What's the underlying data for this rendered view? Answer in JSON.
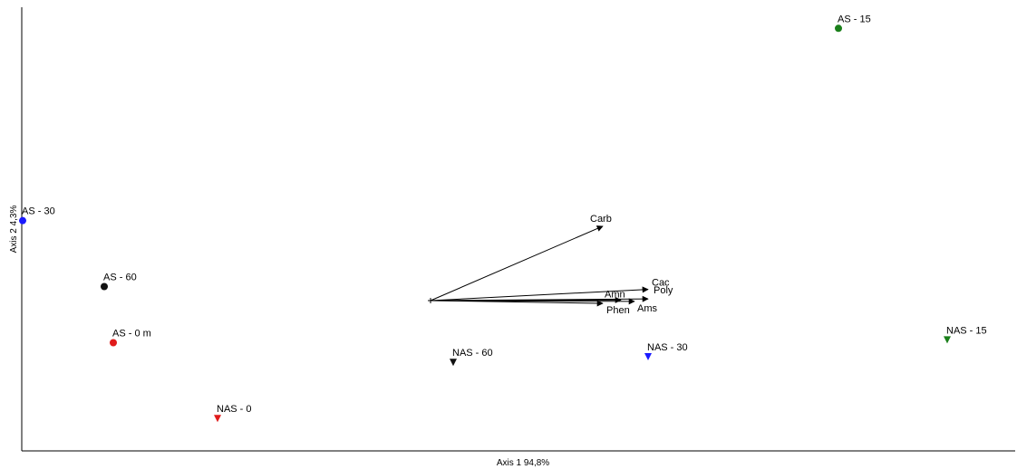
{
  "chart_data": {
    "type": "scatter",
    "xlabel": "Axis 1 94,8%",
    "ylabel": "Axis 2 4,3%",
    "grid": false,
    "points": [
      {
        "label": "AS - 15",
        "x": 0.9,
        "y": 0.97,
        "marker": "circle",
        "color": "#1a7f1a"
      },
      {
        "label": "AS - 30",
        "x": -0.9,
        "y": 0.285,
        "marker": "circle",
        "color": "#1a1aff"
      },
      {
        "label": "AS - 60",
        "x": -0.72,
        "y": 0.05,
        "marker": "circle",
        "color": "#111111"
      },
      {
        "label": "AS - 0 m",
        "x": -0.7,
        "y": -0.15,
        "marker": "circle",
        "color": "#e01b1b"
      },
      {
        "label": "NAS - 0",
        "x": -0.47,
        "y": -0.42,
        "marker": "triangle-down",
        "color": "#e01b1b"
      },
      {
        "label": "NAS - 60",
        "x": 0.05,
        "y": -0.22,
        "marker": "triangle-down",
        "color": "#111111"
      },
      {
        "label": "NAS - 30",
        "x": 0.48,
        "y": -0.2,
        "marker": "triangle-down",
        "color": "#1a1aff"
      },
      {
        "label": "NAS - 15",
        "x": 1.14,
        "y": -0.14,
        "marker": "triangle-down",
        "color": "#1a7f1a"
      }
    ],
    "vectors": [
      {
        "label": "Carb",
        "x": 0.38,
        "y": 0.265
      },
      {
        "label": "Cac",
        "x": 0.48,
        "y": 0.04
      },
      {
        "label": "Amn",
        "x": 0.42,
        "y": 0.002
      },
      {
        "label": "Poly",
        "x": 0.48,
        "y": 0.006
      },
      {
        "label": "Ams",
        "x": 0.45,
        "y": -0.003
      },
      {
        "label": "Phen",
        "x": 0.38,
        "y": -0.01
      }
    ],
    "vector_origin": {
      "x": 0,
      "y": 0
    }
  }
}
